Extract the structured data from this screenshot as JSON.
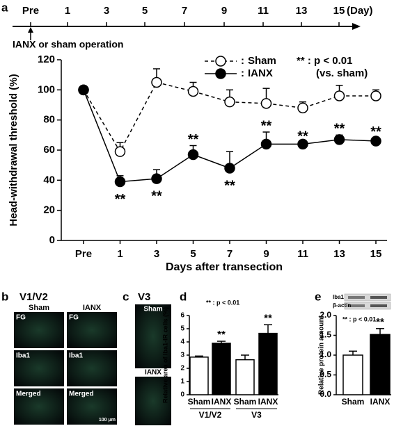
{
  "panel_labels": [
    "a",
    "b",
    "c",
    "d",
    "e"
  ],
  "timeline": {
    "days": [
      "Pre",
      "1",
      "3",
      "5",
      "7",
      "9",
      "11",
      "13",
      "15"
    ],
    "unit": "(Day)",
    "event": "IANX or sham operation"
  },
  "images": {
    "b": {
      "title": "V1/V2",
      "columns": [
        "Sham",
        "IANX"
      ],
      "rows": [
        "FG",
        "Iba1",
        "Merged"
      ],
      "scale": "100 μm"
    },
    "c": {
      "title": "V3",
      "groups": [
        "Sham",
        "IANX"
      ]
    }
  },
  "chart_data": [
    {
      "type": "line",
      "categories": [
        "Pre",
        "1",
        "3",
        "5",
        "7",
        "9",
        "11",
        "13",
        "15"
      ],
      "xlabel": "Days after transection",
      "ylabel": "Head-withdrawal threshold (%)",
      "ylim": [
        0,
        120
      ],
      "yticks": [
        0,
        20,
        40,
        60,
        80,
        100,
        120
      ],
      "legend_separator": ":",
      "note": [
        "** : p < 0.01",
        "(vs. sham)"
      ],
      "series": [
        {
          "name": "Sham",
          "color": "#000000",
          "marker_fill": "#ffffff",
          "dashed": true,
          "values": [
            100,
            59,
            105,
            99,
            92,
            91,
            88,
            96,
            96
          ],
          "errors": [
            0,
            6,
            9,
            6,
            8,
            10,
            4,
            7,
            4
          ]
        },
        {
          "name": "IANX",
          "color": "#000000",
          "marker_fill": "#000000",
          "dashed": false,
          "values": [
            100,
            39,
            41,
            57,
            48,
            64,
            64,
            67,
            66
          ],
          "errors": [
            0,
            4,
            6,
            6,
            11,
            8,
            1,
            3,
            2
          ],
          "significance": [
            null,
            "**",
            "**",
            "**",
            "**",
            "**",
            "**",
            "**",
            "**"
          ]
        }
      ]
    },
    {
      "type": "bar",
      "categories": [
        "Sham",
        "IANX",
        "Sham",
        "IANX"
      ],
      "groups": [
        "V1/V2",
        "V3"
      ],
      "values": [
        2.85,
        3.9,
        2.65,
        4.65
      ],
      "errors": [
        0.08,
        0.15,
        0.35,
        0.65
      ],
      "colors": [
        "#ffffff",
        "#000000",
        "#ffffff",
        "#000000"
      ],
      "significance": [
        null,
        "**",
        null,
        "**"
      ],
      "note": "** : p < 0.01",
      "ylabel": "Relative area of Iba1-IR cells (%)",
      "ylim": [
        0,
        6
      ],
      "yticks": [
        0,
        1,
        2,
        3,
        4,
        5,
        6
      ]
    },
    {
      "type": "bar",
      "categories": [
        "Sham",
        "IANX"
      ],
      "values": [
        1.0,
        1.52
      ],
      "errors": [
        0.1,
        0.15
      ],
      "colors": [
        "#ffffff",
        "#000000"
      ],
      "significance": [
        null,
        "**"
      ],
      "note": "** : p < 0.01",
      "ylabel": "Relative protein amount",
      "blot_labels": [
        "Iba1",
        "β-actin"
      ],
      "ylim": [
        0,
        2.0
      ],
      "yticks": [
        {
          "value": 0,
          "label": "0.0"
        },
        0.5,
        {
          "value": 1,
          "label": "1.0"
        },
        1.5,
        {
          "value": 2,
          "label": "2.0"
        }
      ]
    }
  ]
}
